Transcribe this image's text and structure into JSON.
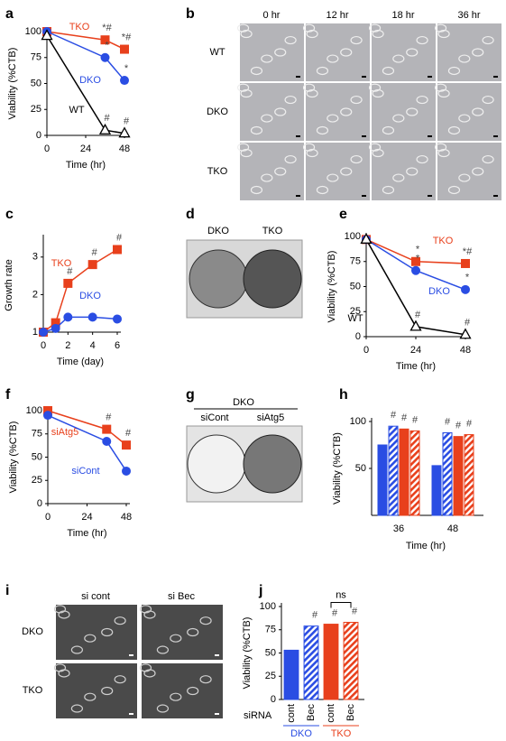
{
  "chart_data": [
    {
      "type": "line",
      "panel": "a",
      "ylabel": "Viability (%CTB)",
      "xlabel": "Time (hr)",
      "x": [
        0,
        36,
        48
      ],
      "xlim": [
        0,
        48
      ],
      "xticks": [
        0,
        24,
        48
      ],
      "ylim": [
        0,
        100
      ],
      "yticks": [
        0,
        25,
        50,
        75,
        100
      ],
      "series": [
        {
          "name": "TKO",
          "color": "#e8401c",
          "marker": "square",
          "values": [
            100,
            92,
            83
          ],
          "annotations": [
            null,
            "*#",
            "*#"
          ]
        },
        {
          "name": "DKO",
          "color": "#2a4de3",
          "marker": "circle",
          "values": [
            100,
            75,
            53
          ],
          "annotations": [
            null,
            "*",
            "*"
          ]
        },
        {
          "name": "WT",
          "color": "#000000",
          "marker": "triangle",
          "values": [
            96,
            5,
            2
          ],
          "annotations": [
            null,
            "#",
            "#"
          ]
        }
      ]
    },
    {
      "type": "line",
      "panel": "c",
      "ylabel": "Growth rate",
      "xlabel": "Time (day)",
      "x": [
        0,
        1,
        2,
        4,
        6
      ],
      "xlim": [
        0,
        6
      ],
      "xticks": [
        0,
        2,
        4,
        6
      ],
      "ylim": [
        1,
        3.5
      ],
      "yticks": [
        1,
        2,
        3
      ],
      "series": [
        {
          "name": "TKO",
          "color": "#e8401c",
          "marker": "square",
          "values": [
            1,
            1.25,
            2.3,
            2.8,
            3.2
          ],
          "annotations": [
            null,
            null,
            "#",
            "#",
            "#"
          ]
        },
        {
          "name": "DKO",
          "color": "#2a4de3",
          "marker": "circle",
          "values": [
            1,
            1.1,
            1.4,
            1.4,
            1.35
          ]
        }
      ]
    },
    {
      "type": "line",
      "panel": "e",
      "ylabel": "Viability (%CTB)",
      "xlabel": "Time (hr)",
      "x": [
        0,
        24,
        48
      ],
      "xlim": [
        0,
        48
      ],
      "xticks": [
        0,
        24,
        48
      ],
      "ylim": [
        0,
        100
      ],
      "yticks": [
        0,
        25,
        50,
        75,
        100
      ],
      "series": [
        {
          "name": "TKO",
          "color": "#e8401c",
          "marker": "square",
          "values": [
            97,
            75,
            73
          ],
          "annotations": [
            null,
            "*",
            "*#"
          ]
        },
        {
          "name": "DKO",
          "color": "#2a4de3",
          "marker": "circle",
          "values": [
            97,
            66,
            47
          ],
          "annotations": [
            null,
            "*",
            "*"
          ]
        },
        {
          "name": "WT",
          "color": "#000000",
          "marker": "triangle",
          "values": [
            97,
            10,
            2
          ],
          "annotations": [
            null,
            "#",
            "#"
          ]
        }
      ]
    },
    {
      "type": "line",
      "panel": "f",
      "ylabel": "Viability (%CTB)",
      "xlabel": "Time (hr)",
      "x": [
        0,
        36,
        48
      ],
      "xlim": [
        0,
        48
      ],
      "xticks": [
        0,
        24,
        48
      ],
      "ylim": [
        0,
        100
      ],
      "yticks": [
        0,
        25,
        50,
        75,
        100
      ],
      "series": [
        {
          "name": "siAtg5",
          "color": "#e8401c",
          "marker": "square",
          "values": [
            100,
            80,
            63
          ],
          "annotations": [
            null,
            "#",
            "#"
          ]
        },
        {
          "name": "siCont",
          "color": "#2a4de3",
          "marker": "circle",
          "values": [
            95,
            67,
            35
          ]
        }
      ]
    },
    {
      "type": "bar",
      "panel": "h",
      "ylabel": "Viability (%CTB)",
      "xlabel": "Time (hr)",
      "categories": [
        "36",
        "48"
      ],
      "ylim": [
        0,
        100
      ],
      "yticks": [
        50,
        100
      ],
      "series": [
        {
          "color": "#2a4de3",
          "hatched": false,
          "values": [
            75,
            53
          ]
        },
        {
          "color": "#2a4de3",
          "hatched": true,
          "values": [
            95,
            88
          ],
          "annotations": [
            "#",
            "#"
          ]
        },
        {
          "color": "#e8401c",
          "hatched": false,
          "values": [
            92,
            84
          ],
          "annotations": [
            "#",
            "#"
          ]
        },
        {
          "color": "#e8401c",
          "hatched": true,
          "values": [
            90,
            86
          ],
          "annotations": [
            "#",
            "#"
          ]
        }
      ]
    },
    {
      "type": "bar",
      "panel": "j",
      "ylabel": "Viability (%CTB)",
      "xlabel": "siRNA",
      "categories": [
        "cont",
        "Bec",
        "cont",
        "Bec"
      ],
      "ylim": [
        0,
        100
      ],
      "yticks": [
        0,
        25,
        50,
        75,
        100
      ],
      "values": [
        53,
        79,
        81,
        83
      ],
      "colors": [
        "#2a4de3",
        "#2a4de3",
        "#e8401c",
        "#e8401c"
      ],
      "hatched": [
        false,
        true,
        false,
        true
      ],
      "annotations": [
        null,
        "#",
        "#",
        "#"
      ],
      "bracket_label": "ns",
      "groups": [
        {
          "name": "DKO",
          "color": "#2a4de3"
        },
        {
          "name": "TKO",
          "color": "#e8401c"
        }
      ]
    }
  ],
  "images": [
    {
      "panel": "b",
      "columns": [
        "0 hr",
        "12 hr",
        "18 hr",
        "36 hr"
      ],
      "rows": [
        "WT",
        "DKO",
        "TKO"
      ]
    },
    {
      "panel": "d",
      "labels": [
        "DKO",
        "TKO"
      ]
    },
    {
      "panel": "g",
      "title": "DKO",
      "labels": [
        "siCont",
        "siAtg5"
      ]
    },
    {
      "panel": "i",
      "columns": [
        "si cont",
        "si Bec"
      ],
      "rows": [
        "DKO",
        "TKO"
      ]
    }
  ]
}
